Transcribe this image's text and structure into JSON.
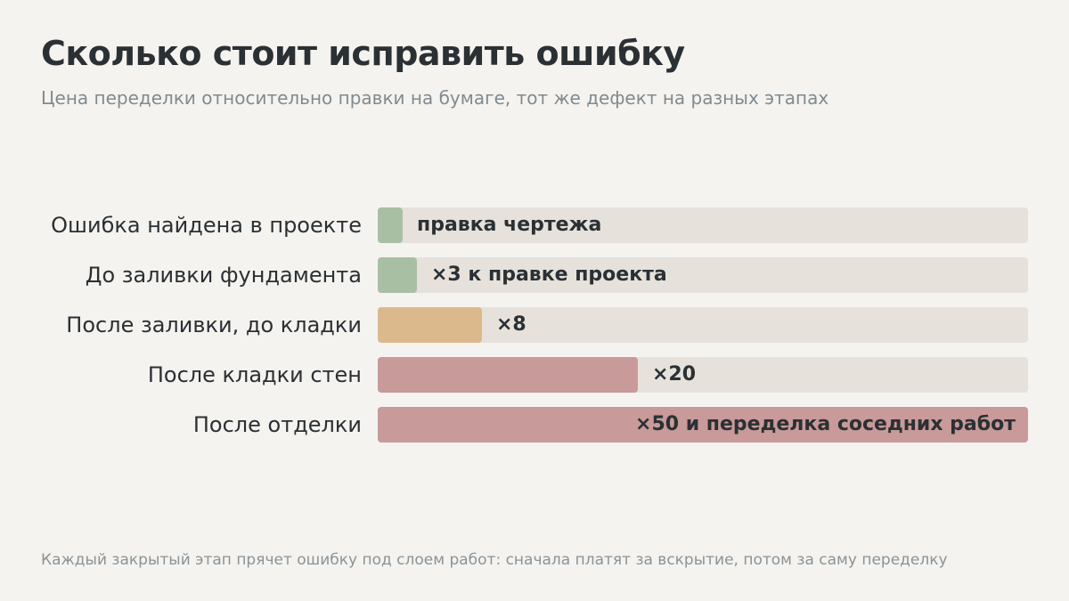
{
  "chart_data": {
    "type": "bar",
    "orientation": "horizontal",
    "title": "Сколько стоит исправить ошибку",
    "subtitle": "Цена переделки относительно правки на бумаге, тот же дефект на разных этапах",
    "categories": [
      "Ошибка найдена в проекте",
      "До заливки фундамента",
      "После заливки, до кладки",
      "После кладки стен",
      "После отделки"
    ],
    "values": [
      1,
      3,
      8,
      20,
      50
    ],
    "xlim": [
      0,
      50
    ],
    "data_labels": [
      "правка чертежа",
      "×3 к правке проекта",
      "×8",
      "×20",
      "×50 и переделка соседних работ"
    ],
    "bar_colors": [
      "#a9bfa4",
      "#a9bfa4",
      "#dcb98c",
      "#c89a99",
      "#c89a99"
    ],
    "track_color": "#e6e2db",
    "grid": false,
    "legend": "none",
    "footnote": "Каждый закрытый этап прячет ошибку под слоем работ: сначала платят за вскрытие, потом за саму переделку"
  }
}
